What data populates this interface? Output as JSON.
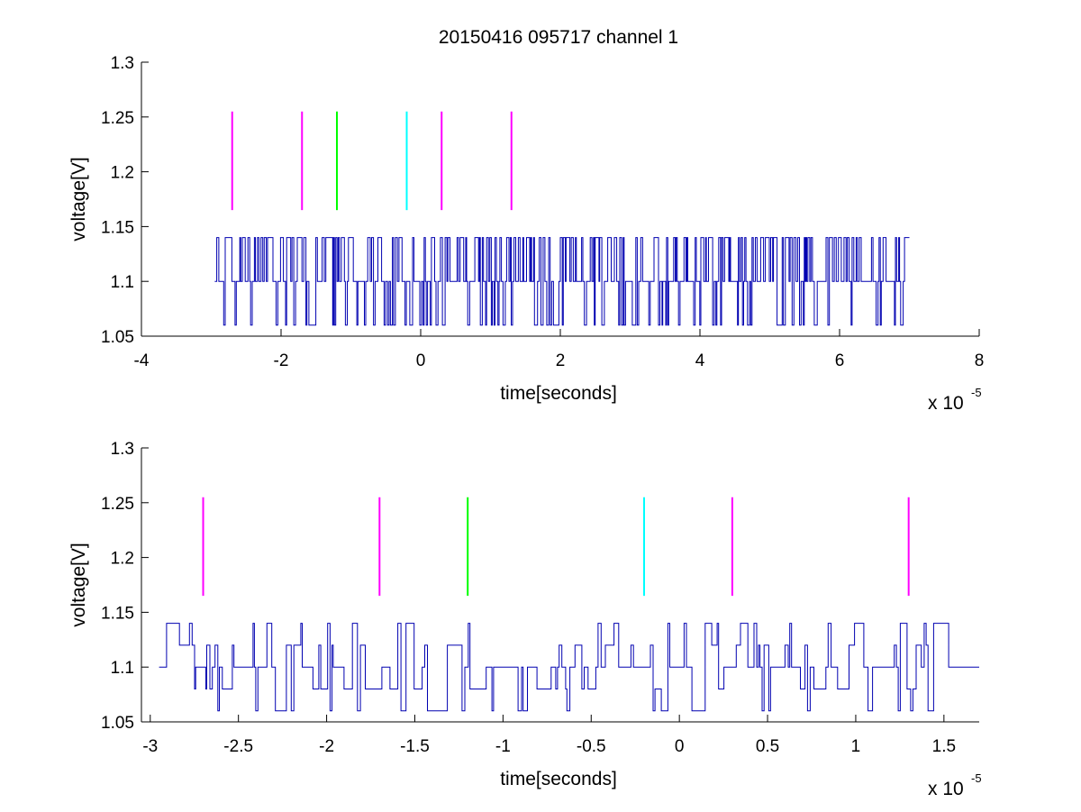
{
  "figure": {
    "title": "20150416 095717 channel 1"
  },
  "colors": {
    "signal": "#0000b0",
    "magenta": "#ff00ff",
    "green": "#00ff00",
    "cyan": "#00ffff",
    "axis": "#000000"
  },
  "chart_data": [
    {
      "type": "line",
      "title": "20150416 095717 channel 1",
      "xlabel": "time[seconds]",
      "ylabel": "voltage[V]",
      "x_multiplier_label": "x 10",
      "x_multiplier_exponent": "-5",
      "xlim": [
        -4,
        8
      ],
      "ylim": [
        1.05,
        1.3
      ],
      "xticks": [
        -4,
        -2,
        0,
        2,
        4,
        6,
        8
      ],
      "xtick_labels": [
        "-4",
        "-2",
        "0",
        "2",
        "4",
        "6",
        "8"
      ],
      "yticks": [
        1.05,
        1.1,
        1.15,
        1.2,
        1.25,
        1.3
      ],
      "ytick_labels": [
        "1.05",
        "1.1",
        "1.15",
        "1.2",
        "1.25",
        "1.3"
      ],
      "grid": false,
      "signal": {
        "name": "",
        "color": "#0000b0",
        "x_range": [
          -2.95,
          7.0
        ],
        "levels": [
          1.06,
          1.1,
          1.14
        ],
        "baseline": 1.1
      },
      "markers": [
        {
          "x": -2.7,
          "y_range": [
            1.165,
            1.255
          ],
          "color": "magenta"
        },
        {
          "x": -1.7,
          "y_range": [
            1.165,
            1.255
          ],
          "color": "magenta"
        },
        {
          "x": -1.2,
          "y_range": [
            1.165,
            1.255
          ],
          "color": "green"
        },
        {
          "x": -0.2,
          "y_range": [
            1.165,
            1.255
          ],
          "color": "cyan"
        },
        {
          "x": 0.3,
          "y_range": [
            1.165,
            1.255
          ],
          "color": "magenta"
        },
        {
          "x": 1.3,
          "y_range": [
            1.165,
            1.255
          ],
          "color": "magenta"
        }
      ]
    },
    {
      "type": "line",
      "title": "",
      "xlabel": "time[seconds]",
      "ylabel": "voltage[V]",
      "x_multiplier_label": "x 10",
      "x_multiplier_exponent": "-5",
      "xlim": [
        -3.05,
        1.7
      ],
      "ylim": [
        1.05,
        1.3
      ],
      "xticks": [
        -3,
        -2.5,
        -2,
        -1.5,
        -1,
        -0.5,
        0,
        0.5,
        1,
        1.5
      ],
      "xtick_labels": [
        "-3",
        "-2.5",
        "-2",
        "-1.5",
        "-1",
        "-0.5",
        "0",
        "0.5",
        "1",
        "1.5"
      ],
      "yticks": [
        1.05,
        1.1,
        1.15,
        1.2,
        1.25,
        1.3
      ],
      "ytick_labels": [
        "1.05",
        "1.1",
        "1.15",
        "1.2",
        "1.25",
        "1.3"
      ],
      "grid": false,
      "signal": {
        "name": "",
        "color": "#0000b0",
        "x_range": [
          -2.95,
          1.7
        ],
        "levels": [
          1.06,
          1.08,
          1.1,
          1.12,
          1.14
        ],
        "baseline": 1.1
      },
      "markers": [
        {
          "x": -2.7,
          "y_range": [
            1.165,
            1.255
          ],
          "color": "magenta"
        },
        {
          "x": -1.7,
          "y_range": [
            1.165,
            1.255
          ],
          "color": "magenta"
        },
        {
          "x": -1.2,
          "y_range": [
            1.165,
            1.255
          ],
          "color": "green"
        },
        {
          "x": -0.2,
          "y_range": [
            1.165,
            1.255
          ],
          "color": "cyan"
        },
        {
          "x": 0.3,
          "y_range": [
            1.165,
            1.255
          ],
          "color": "magenta"
        },
        {
          "x": 1.3,
          "y_range": [
            1.165,
            1.255
          ],
          "color": "magenta"
        }
      ]
    }
  ]
}
